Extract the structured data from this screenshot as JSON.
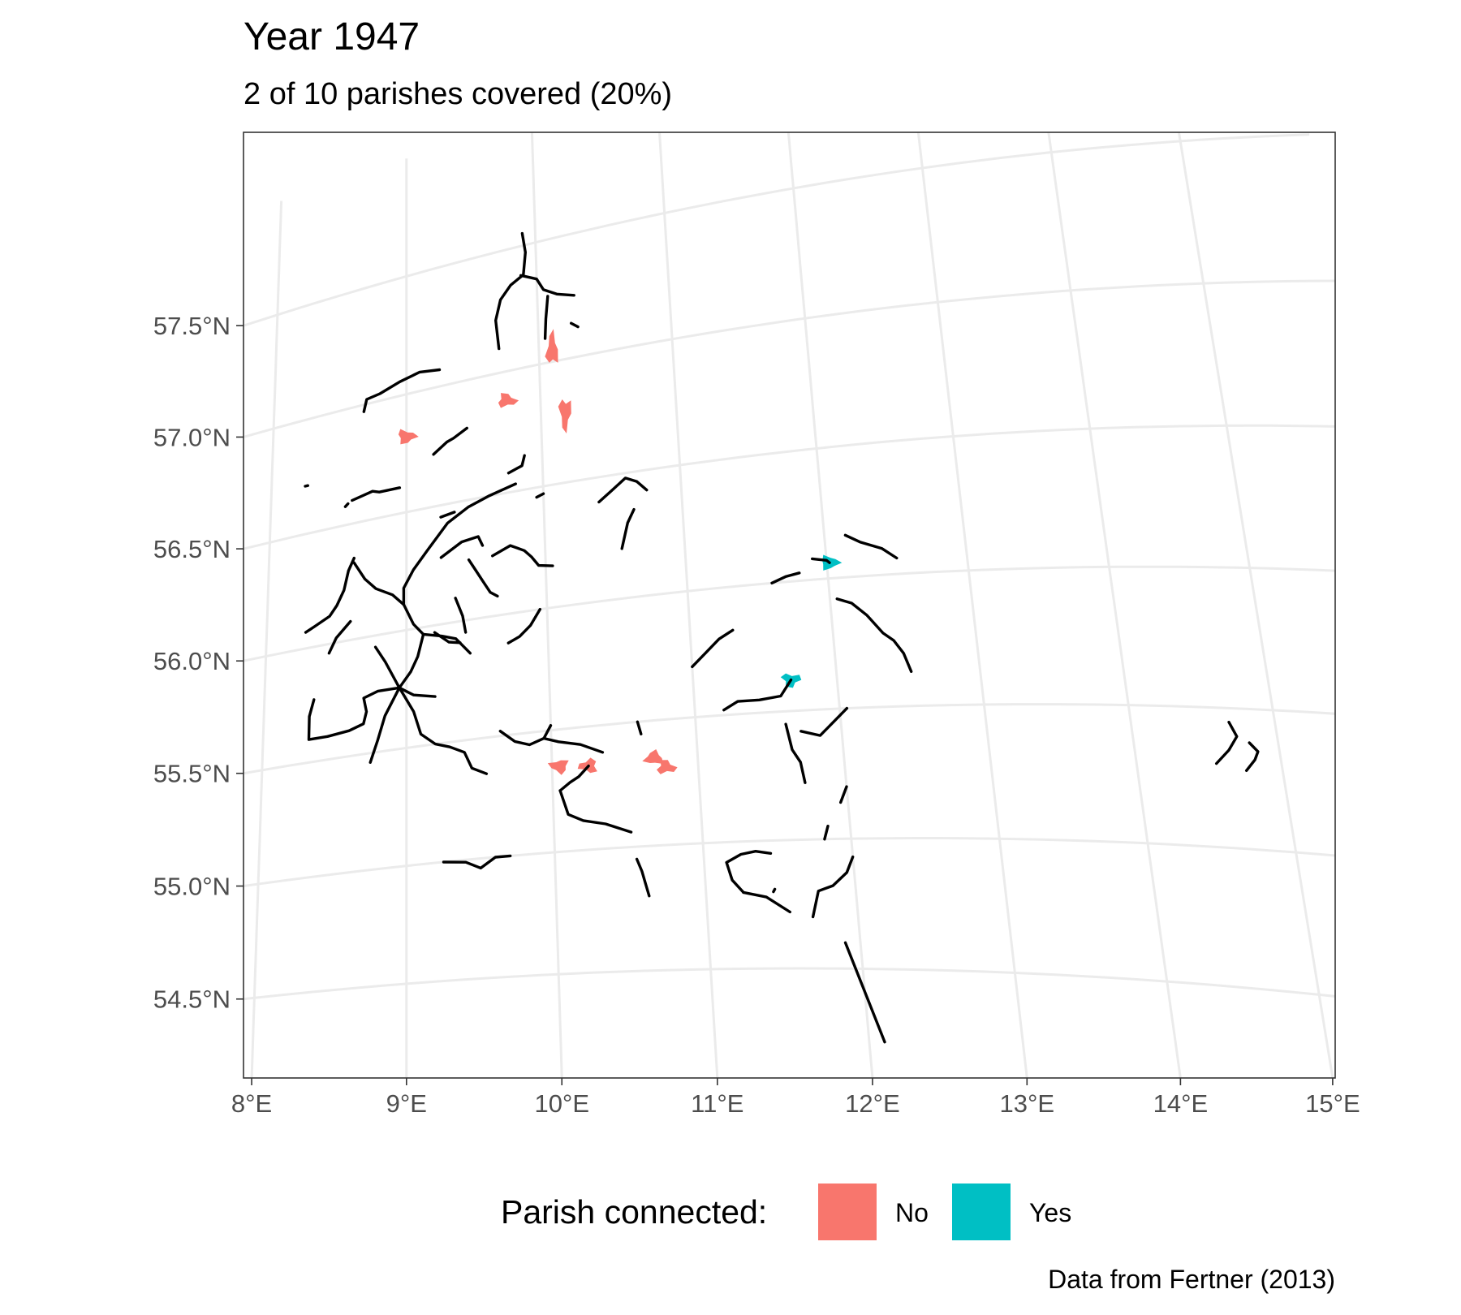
{
  "chart_data": {
    "type": "map",
    "title": "Year 1947",
    "subtitle": "2 of 10 parishes covered (20%)",
    "caption": "Data from Fertner (2013)",
    "x_ticks": [
      "8°E",
      "9°E",
      "10°E",
      "11°E",
      "12°E",
      "13°E",
      "14°E",
      "15°E"
    ],
    "y_ticks": [
      "54.5°N",
      "55.0°N",
      "55.5°N",
      "56.0°N",
      "56.5°N",
      "57.0°N",
      "57.5°N"
    ],
    "xlim": [
      7.95,
      15.15
    ],
    "ylim": [
      54.2,
      57.75
    ],
    "grid": true,
    "legend": {
      "title": "Parish connected:",
      "position": "bottom",
      "items": [
        {
          "label": "No",
          "color": "#F8766D"
        },
        {
          "label": "Yes",
          "color": "#00BFC4"
        }
      ]
    },
    "parishes": [
      {
        "connected": "No",
        "lon": 10.1,
        "lat": 57.05
      },
      {
        "connected": "No",
        "lon": 9.75,
        "lat": 56.88
      },
      {
        "connected": "No",
        "lon": 9.0,
        "lat": 56.82
      },
      {
        "connected": "No",
        "lon": 10.18,
        "lat": 56.78
      },
      {
        "connected": "No",
        "lon": 10.05,
        "lat": 55.35
      },
      {
        "connected": "No",
        "lon": 10.25,
        "lat": 55.34
      },
      {
        "connected": "No",
        "lon": 10.7,
        "lat": 55.35
      },
      {
        "connected": "No",
        "lon": 10.78,
        "lat": 55.31
      },
      {
        "connected": "Yes",
        "lon": 12.02,
        "lat": 56.06
      },
      {
        "connected": "Yes",
        "lon": 11.68,
        "lat": 55.62
      }
    ],
    "railways": [
      [
        [
          9.7,
          57.1
        ],
        [
          9.68,
          57.22
        ],
        [
          9.72,
          57.3
        ],
        [
          9.8,
          57.35
        ],
        [
          9.9,
          57.38
        ],
        [
          9.92,
          57.47
        ],
        [
          9.9,
          57.55
        ]
      ],
      [
        [
          9.88,
          57.38
        ],
        [
          10.0,
          57.35
        ],
        [
          10.05,
          57.3
        ],
        [
          10.15,
          57.27
        ],
        [
          10.28,
          57.25
        ]
      ],
      [
        [
          10.08,
          57.27
        ],
        [
          10.06,
          57.18
        ],
        [
          10.05,
          57.1
        ]
      ],
      [
        [
          10.25,
          57.14
        ],
        [
          10.3,
          57.12
        ]
      ],
      [
        [
          8.68,
          56.97
        ],
        [
          8.7,
          57.02
        ],
        [
          8.8,
          57.03
        ],
        [
          8.95,
          57.06
        ],
        [
          9.1,
          57.08
        ],
        [
          9.25,
          57.07
        ]
      ],
      [
        [
          9.2,
          56.72
        ],
        [
          9.3,
          56.76
        ],
        [
          9.35,
          56.77
        ],
        [
          9.45,
          56.8
        ]
      ],
      [
        [
          8.6,
          56.6
        ],
        [
          8.75,
          56.62
        ],
        [
          8.8,
          56.61
        ],
        [
          8.95,
          56.61
        ]
      ],
      [
        [
          8.25,
          56.71
        ],
        [
          8.27,
          56.71
        ]
      ],
      [
        [
          8.55,
          56.58
        ],
        [
          8.57,
          56.59
        ]
      ],
      [
        [
          9.75,
          56.58
        ],
        [
          9.85,
          56.6
        ],
        [
          9.87,
          56.64
        ]
      ],
      [
        [
          9.25,
          56.45
        ],
        [
          9.35,
          56.46
        ]
      ],
      [
        [
          9.95,
          56.46
        ],
        [
          10.0,
          56.47
        ]
      ],
      [
        [
          8.28,
          56.07
        ],
        [
          8.35,
          56.09
        ],
        [
          8.45,
          56.12
        ],
        [
          8.5,
          56.16
        ],
        [
          8.55,
          56.22
        ],
        [
          8.58,
          56.3
        ],
        [
          8.62,
          56.35
        ]
      ],
      [
        [
          8.62,
          56.33
        ],
        [
          8.7,
          56.25
        ],
        [
          8.78,
          56.2
        ],
        [
          8.9,
          56.16
        ],
        [
          8.98,
          56.11
        ]
      ],
      [
        [
          8.98,
          56.11
        ],
        [
          8.98,
          56.18
        ],
        [
          9.05,
          56.25
        ],
        [
          9.15,
          56.32
        ],
        [
          9.3,
          56.42
        ],
        [
          9.45,
          56.47
        ],
        [
          9.6,
          56.5
        ],
        [
          9.8,
          56.53
        ]
      ],
      [
        [
          8.98,
          56.11
        ],
        [
          9.05,
          56.02
        ],
        [
          9.12,
          55.97
        ],
        [
          9.25,
          55.95
        ],
        [
          9.35,
          55.93
        ],
        [
          9.45,
          55.86
        ]
      ],
      [
        [
          9.12,
          55.97
        ],
        [
          9.08,
          55.88
        ],
        [
          9.03,
          55.82
        ],
        [
          8.95,
          55.76
        ]
      ],
      [
        [
          8.95,
          55.76
        ],
        [
          8.8,
          55.76
        ],
        [
          8.7,
          55.74
        ],
        [
          8.72,
          55.68
        ],
        [
          8.7,
          55.63
        ],
        [
          8.6,
          55.61
        ],
        [
          8.45,
          55.6
        ],
        [
          8.32,
          55.6
        ],
        [
          8.32,
          55.7
        ],
        [
          8.35,
          55.77
        ]
      ],
      [
        [
          8.95,
          55.76
        ],
        [
          9.05,
          55.72
        ],
        [
          9.2,
          55.7
        ]
      ],
      [
        [
          8.95,
          55.76
        ],
        [
          9.05,
          55.65
        ],
        [
          9.1,
          55.55
        ],
        [
          9.2,
          55.5
        ],
        [
          9.3,
          55.48
        ],
        [
          9.4,
          55.45
        ],
        [
          9.45,
          55.38
        ],
        [
          9.55,
          55.35
        ]
      ],
      [
        [
          8.95,
          55.76
        ],
        [
          8.85,
          55.65
        ],
        [
          8.8,
          55.55
        ],
        [
          8.75,
          55.46
        ]
      ],
      [
        [
          8.95,
          55.76
        ],
        [
          8.85,
          55.88
        ],
        [
          8.78,
          55.95
        ]
      ],
      [
        [
          8.45,
          55.96
        ],
        [
          8.5,
          56.02
        ],
        [
          8.6,
          56.08
        ]
      ],
      [
        [
          9.25,
          56.28
        ],
        [
          9.4,
          56.33
        ],
        [
          9.52,
          56.34
        ],
        [
          9.55,
          56.3
        ]
      ],
      [
        [
          9.45,
          56.25
        ],
        [
          9.5,
          56.2
        ],
        [
          9.55,
          56.15
        ],
        [
          9.6,
          56.1
        ],
        [
          9.65,
          56.08
        ]
      ],
      [
        [
          9.35,
          56.1
        ],
        [
          9.4,
          56.02
        ],
        [
          9.42,
          55.95
        ]
      ],
      [
        [
          9.62,
          56.25
        ],
        [
          9.75,
          56.28
        ],
        [
          9.85,
          56.25
        ],
        [
          9.9,
          56.22
        ],
        [
          9.95,
          56.18
        ],
        [
          10.05,
          56.17
        ]
      ],
      [
        [
          9.72,
          55.88
        ],
        [
          9.8,
          55.9
        ],
        [
          9.88,
          55.94
        ],
        [
          9.95,
          56.0
        ]
      ],
      [
        [
          9.2,
          55.97
        ],
        [
          9.3,
          55.92
        ],
        [
          9.38,
          55.91
        ]
      ],
      [
        [
          10.4,
          56.4
        ],
        [
          10.5,
          56.44
        ],
        [
          10.6,
          56.48
        ],
        [
          10.68,
          56.46
        ],
        [
          10.75,
          56.42
        ]
      ],
      [
        [
          10.55,
          56.2
        ],
        [
          10.6,
          56.3
        ],
        [
          10.65,
          56.35
        ]
      ],
      [
        [
          9.65,
          55.52
        ],
        [
          9.75,
          55.47
        ],
        [
          9.85,
          55.45
        ],
        [
          9.95,
          55.47
        ],
        [
          10.05,
          55.45
        ],
        [
          10.2,
          55.43
        ],
        [
          10.35,
          55.39
        ]
      ],
      [
        [
          9.95,
          55.47
        ],
        [
          10.0,
          55.52
        ]
      ],
      [
        [
          10.05,
          55.25
        ],
        [
          10.12,
          55.28
        ],
        [
          10.18,
          55.3
        ],
        [
          10.25,
          55.34
        ]
      ],
      [
        [
          10.05,
          55.25
        ],
        [
          10.1,
          55.15
        ],
        [
          10.2,
          55.12
        ],
        [
          10.35,
          55.1
        ],
        [
          10.52,
          55.06
        ]
      ],
      [
        [
          9.25,
          55.0
        ],
        [
          9.4,
          54.99
        ],
        [
          9.5,
          54.96
        ],
        [
          9.6,
          55.0
        ],
        [
          9.7,
          55.0
        ]
      ],
      [
        [
          10.55,
          54.95
        ],
        [
          10.58,
          54.9
        ],
        [
          10.6,
          54.85
        ],
        [
          10.62,
          54.8
        ]
      ],
      [
        [
          10.6,
          55.5
        ],
        [
          10.62,
          55.45
        ]
      ],
      [
        [
          11.0,
          55.7
        ],
        [
          11.1,
          55.75
        ],
        [
          11.2,
          55.8
        ],
        [
          11.3,
          55.83
        ]
      ],
      [
        [
          11.2,
          55.52
        ],
        [
          11.3,
          55.55
        ],
        [
          11.45,
          55.55
        ],
        [
          11.6,
          55.56
        ],
        [
          11.68,
          55.62
        ]
      ],
      [
        [
          11.62,
          55.45
        ],
        [
          11.65,
          55.35
        ],
        [
          11.7,
          55.3
        ],
        [
          11.72,
          55.22
        ]
      ],
      [
        [
          11.72,
          55.42
        ],
        [
          11.85,
          55.4
        ],
        [
          11.95,
          55.45
        ],
        [
          12.05,
          55.5
        ]
      ],
      [
        [
          11.6,
          56.0
        ],
        [
          11.7,
          56.02
        ],
        [
          11.8,
          56.03
        ]
      ],
      [
        [
          11.9,
          56.08
        ],
        [
          12.0,
          56.07
        ],
        [
          12.02,
          56.06
        ]
      ],
      [
        [
          12.15,
          56.16
        ],
        [
          12.25,
          56.13
        ],
        [
          12.4,
          56.1
        ],
        [
          12.5,
          56.06
        ]
      ],
      [
        [
          12.05,
          55.92
        ],
        [
          12.15,
          55.9
        ],
        [
          12.25,
          55.85
        ],
        [
          12.35,
          55.78
        ],
        [
          12.42,
          55.75
        ],
        [
          12.48,
          55.7
        ],
        [
          12.52,
          55.63
        ]
      ],
      [
        [
          11.25,
          54.8
        ],
        [
          11.18,
          54.85
        ],
        [
          11.15,
          54.92
        ],
        [
          11.25,
          54.95
        ],
        [
          11.35,
          54.96
        ],
        [
          11.45,
          54.95
        ]
      ],
      [
        [
          11.25,
          54.8
        ],
        [
          11.4,
          54.78
        ],
        [
          11.55,
          54.72
        ]
      ],
      [
        [
          11.7,
          54.7
        ],
        [
          11.75,
          54.8
        ],
        [
          11.85,
          54.82
        ],
        [
          11.95,
          54.87
        ],
        [
          12.0,
          54.93
        ]
      ],
      [
        [
          11.82,
          55.0
        ],
        [
          11.85,
          55.05
        ]
      ],
      [
        [
          11.95,
          55.14
        ],
        [
          12.0,
          55.2
        ]
      ],
      [
        [
          11.9,
          54.6
        ],
        [
          12.1,
          54.22
        ]
      ],
      [
        [
          11.45,
          54.8
        ],
        [
          11.46,
          54.81
        ]
      ],
      [
        [
          14.55,
          55.3
        ],
        [
          14.65,
          55.35
        ],
        [
          14.72,
          55.4
        ],
        [
          14.68,
          55.45
        ]
      ],
      [
        [
          14.75,
          55.28
        ],
        [
          14.82,
          55.32
        ],
        [
          14.85,
          55.35
        ],
        [
          14.8,
          55.38
        ]
      ]
    ]
  }
}
